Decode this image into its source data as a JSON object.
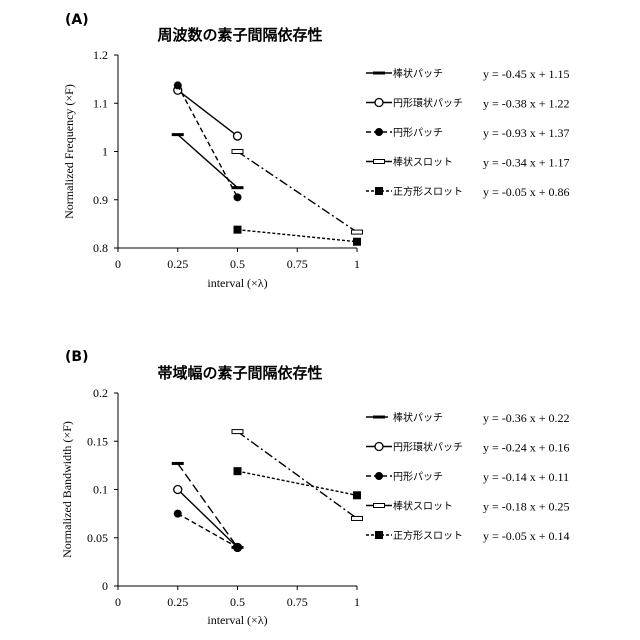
{
  "chart_data": [
    {
      "type": "line",
      "panel": "(A)",
      "title": "周波数の素子間隔依存性",
      "xlabel": "interval (×λ)",
      "ylabel": "Normalized Frequency (×F)",
      "xlim": [
        0,
        1
      ],
      "ylim": [
        0.8,
        1.2
      ],
      "xticks": [
        "0",
        "0.25",
        "0.5",
        "0.75",
        "1"
      ],
      "xtick_values": [
        0,
        0.25,
        0.5,
        0.75,
        1
      ],
      "yticks": [
        "0.8",
        "0.9",
        "1",
        "1.1",
        "1.2"
      ],
      "ytick_values": [
        0.8,
        0.9,
        1.0,
        1.1,
        1.2
      ],
      "legend_position": "right",
      "series": [
        {
          "name": "棒状パッチ",
          "marker": "dash",
          "line": "solid",
          "x": [
            0.25,
            0.5
          ],
          "y": [
            1.035,
            0.925
          ],
          "equation": "y = -0.45 x + 1.15"
        },
        {
          "name": "円形環状パッチ",
          "marker": "circle-open",
          "line": "solid",
          "x": [
            0.25,
            0.5
          ],
          "y": [
            1.127,
            1.032
          ],
          "equation": "y = -0.38 x + 1.22"
        },
        {
          "name": "円形パッチ",
          "marker": "circle",
          "line": "dashed",
          "x": [
            0.25,
            0.5
          ],
          "y": [
            1.137,
            0.905
          ],
          "equation": "y = -0.93 x + 1.37"
        },
        {
          "name": "棒状スロット",
          "marker": "rect-open",
          "line": "dashdot",
          "x": [
            0.5,
            1
          ],
          "y": [
            1.0,
            0.833
          ],
          "equation": "y = -0.34 x + 1.17"
        },
        {
          "name": "正方形スロット",
          "marker": "square",
          "line": "dotted",
          "x": [
            0.5,
            1
          ],
          "y": [
            0.838,
            0.813
          ],
          "equation": "y = -0.05 x + 0.86"
        }
      ]
    },
    {
      "type": "line",
      "panel": "(B)",
      "title": "帯域幅の素子間隔依存性",
      "xlabel": "interval (×λ)",
      "ylabel": "Normalized Bandwidth (×F)",
      "xlim": [
        0,
        1
      ],
      "ylim": [
        0,
        0.2
      ],
      "xticks": [
        "0",
        "0.25",
        "0.5",
        "0.75",
        "1"
      ],
      "xtick_values": [
        0,
        0.25,
        0.5,
        0.75,
        1
      ],
      "yticks": [
        "0",
        "0.05",
        "0.1",
        "0.15",
        "0.2"
      ],
      "ytick_values": [
        0,
        0.05,
        0.1,
        0.15,
        0.2
      ],
      "legend_position": "right",
      "series": [
        {
          "name": "棒状パッチ",
          "marker": "dash",
          "line": "longdash",
          "x": [
            0.25,
            0.5
          ],
          "y": [
            0.127,
            0.04
          ],
          "equation": "y = -0.36 x + 0.22"
        },
        {
          "name": "円形環状パッチ",
          "marker": "circle-open",
          "line": "solid",
          "x": [
            0.25,
            0.5
          ],
          "y": [
            0.1,
            0.04
          ],
          "equation": "y = -0.24 x + 0.16"
        },
        {
          "name": "円形パッチ",
          "marker": "circle",
          "line": "dashed",
          "x": [
            0.25,
            0.5
          ],
          "y": [
            0.075,
            0.04
          ],
          "equation": "y = -0.14 x + 0.11"
        },
        {
          "name": "棒状スロット",
          "marker": "rect-open",
          "line": "dashdot",
          "x": [
            0.5,
            1
          ],
          "y": [
            0.16,
            0.07
          ],
          "equation": "y = -0.18 x + 0.25"
        },
        {
          "name": "正方形スロット",
          "marker": "square",
          "line": "dotted",
          "x": [
            0.5,
            1
          ],
          "y": [
            0.119,
            0.094
          ],
          "equation": "y = -0.05 x + 0.14"
        }
      ]
    }
  ]
}
